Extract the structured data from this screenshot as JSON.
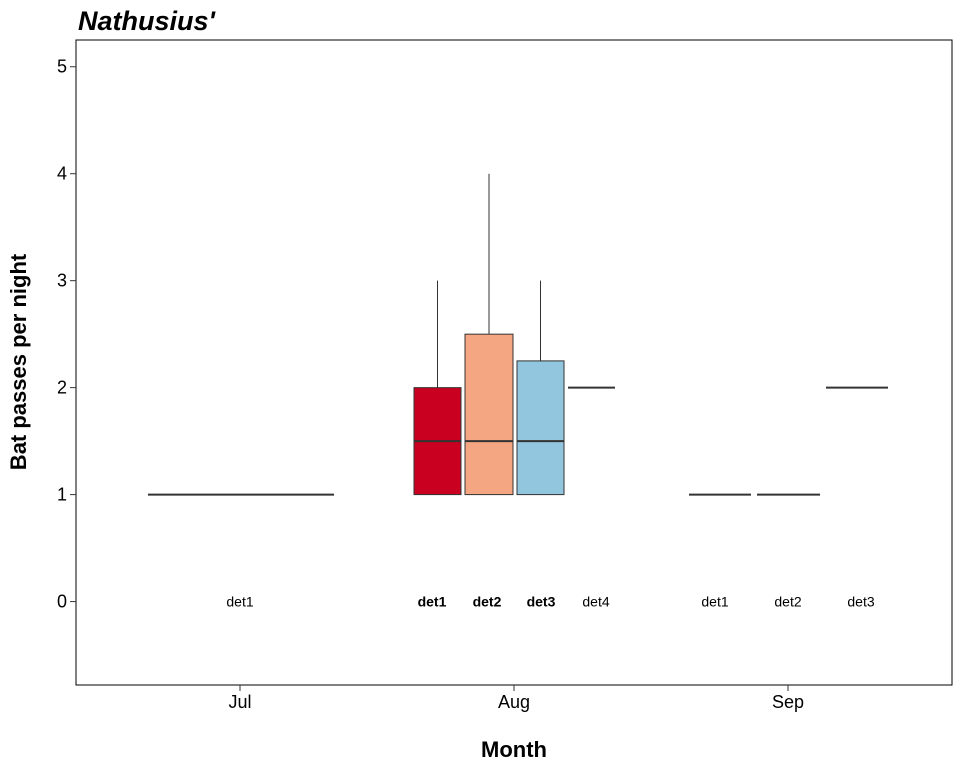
{
  "chart_data": {
    "type": "boxplot",
    "title": "Nathusius'",
    "xlabel": "Month",
    "ylabel": "Bat passes per night",
    "ylim": [
      -0.78,
      5.25
    ],
    "yticks": [
      0,
      1,
      2,
      3,
      4,
      5
    ],
    "categories": [
      "Jul",
      "Aug",
      "Sep"
    ],
    "colors": {
      "det1": "#ca0020",
      "det2": "#f4a582",
      "det3": "#92c5de",
      "det4": "#ffffff"
    },
    "groups": [
      {
        "month": "Jul",
        "boxes": [
          {
            "detector": "det1",
            "min": 1,
            "q1": 1,
            "median": 1,
            "q3": 1,
            "max": 1,
            "label_bold": false
          }
        ]
      },
      {
        "month": "Aug",
        "boxes": [
          {
            "detector": "det1",
            "min": 1,
            "q1": 1,
            "median": 1.5,
            "q3": 2,
            "max": 3,
            "label_bold": true
          },
          {
            "detector": "det2",
            "min": 1,
            "q1": 1,
            "median": 1.5,
            "q3": 2.5,
            "max": 4,
            "label_bold": true
          },
          {
            "detector": "det3",
            "min": 1,
            "q1": 1,
            "median": 1.5,
            "q3": 2.25,
            "max": 3,
            "label_bold": true
          },
          {
            "detector": "det4",
            "min": 2,
            "q1": 2,
            "median": 2,
            "q3": 2,
            "max": 2,
            "label_bold": false
          }
        ]
      },
      {
        "month": "Sep",
        "boxes": [
          {
            "detector": "det1",
            "min": 1,
            "q1": 1,
            "median": 1,
            "q3": 1,
            "max": 1,
            "label_bold": false
          },
          {
            "detector": "det2",
            "min": 1,
            "q1": 1,
            "median": 1,
            "q3": 1,
            "max": 1,
            "label_bold": false
          },
          {
            "detector": "det3",
            "min": 2,
            "q1": 2,
            "median": 2,
            "q3": 2,
            "max": 2,
            "label_bold": false
          }
        ]
      }
    ],
    "detector_label_y": 0,
    "grid": false,
    "legend": "none"
  }
}
